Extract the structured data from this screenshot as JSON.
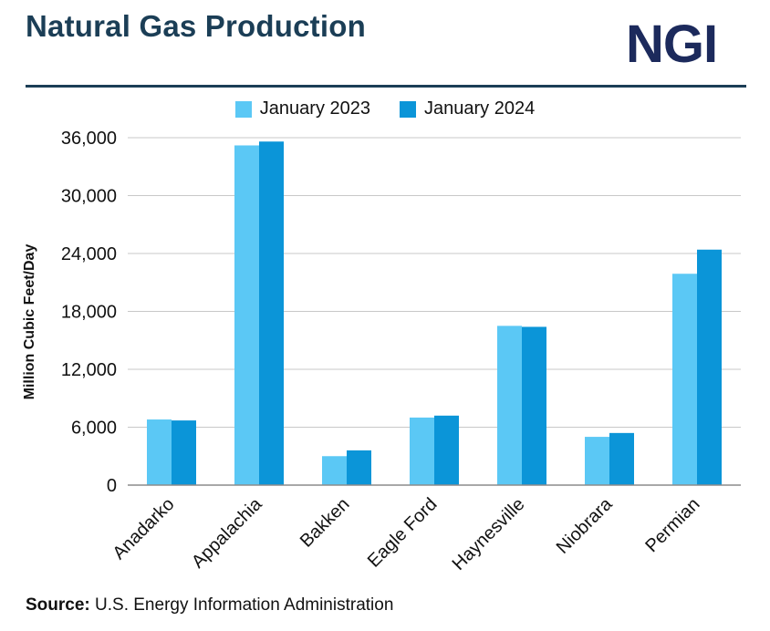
{
  "header": {
    "title": "Natural Gas Production",
    "logo_text": "NGI"
  },
  "footer": {
    "source_label": "Source:",
    "source_text": "U.S. Energy Information Administration"
  },
  "colors": {
    "title": "#1b3e56",
    "logo": "#1c2a5c",
    "series_2023": "#5bc8f5",
    "series_2024": "#0b95d8"
  },
  "chart_data": {
    "type": "bar",
    "title": "",
    "xlabel": "",
    "ylabel": "Million Cubic Feet/Day",
    "ylim": [
      0,
      36000
    ],
    "yticks": [
      0,
      6000,
      12000,
      18000,
      24000,
      30000,
      36000
    ],
    "ytick_labels": [
      "0",
      "6,000",
      "12,000",
      "18,000",
      "24,000",
      "30,000",
      "36,000"
    ],
    "grid": true,
    "legend_position": "top-center",
    "categories": [
      "Anadarko",
      "Appalachia",
      "Bakken",
      "Eagle Ford",
      "Haynesville",
      "Niobrara",
      "Permian"
    ],
    "series": [
      {
        "name": "January 2023",
        "color": "#5bc8f5",
        "values": [
          6800,
          35200,
          3000,
          7000,
          16500,
          5000,
          21900
        ]
      },
      {
        "name": "January 2024",
        "color": "#0b95d8",
        "values": [
          6700,
          35600,
          3600,
          7200,
          16400,
          5400,
          24400
        ]
      }
    ]
  }
}
